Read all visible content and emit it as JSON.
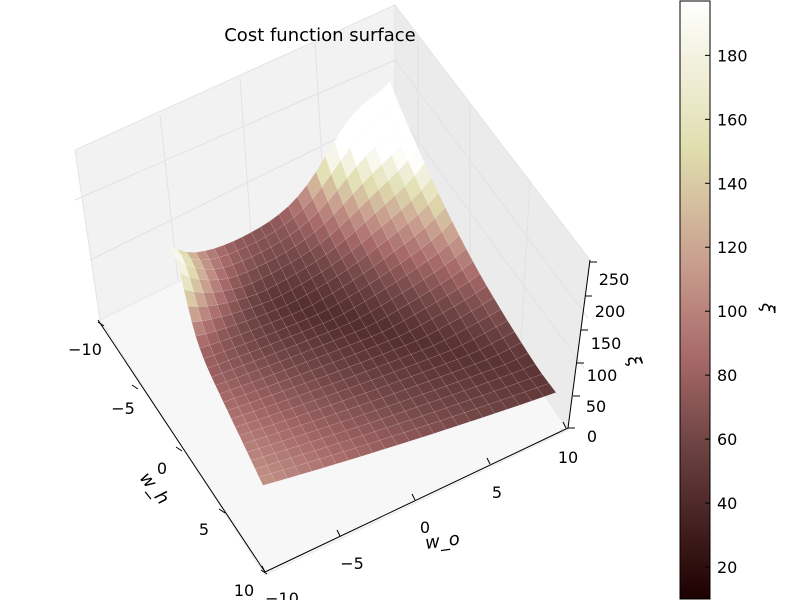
{
  "chart_data": {
    "type": "surface3d",
    "title": "Cost function surface",
    "xlabel": "w_o",
    "ylabel": "w_h",
    "zlabel": "ξ",
    "x_range": [
      -10,
      10
    ],
    "y_range": [
      -10,
      10
    ],
    "z_range": [
      0,
      250
    ],
    "x_ticks": [
      "−10",
      "−5",
      "0",
      "5",
      "10"
    ],
    "y_ticks": [
      "−10",
      "−5",
      "0",
      "5",
      "10"
    ],
    "z_ticks": [
      "0",
      "50",
      "100",
      "150",
      "200",
      "250"
    ],
    "colorbar": {
      "label": "ξ",
      "range": [
        10,
        197
      ],
      "ticks": [
        "20",
        "40",
        "60",
        "80",
        "100",
        "120",
        "140",
        "160",
        "180"
      ]
    },
    "colormap": "pink",
    "grid": true
  }
}
